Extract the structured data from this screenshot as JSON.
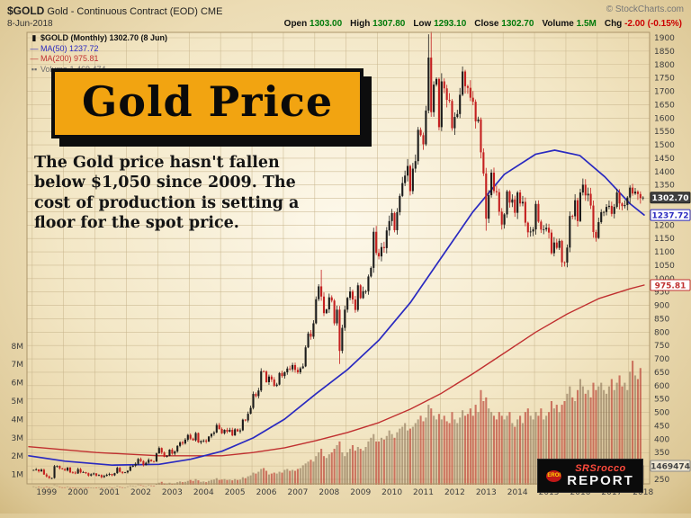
{
  "header": {
    "symbol": "$GOLD",
    "description": "Gold - Continuous Contract (EOD) CME",
    "copyright": "© StockCharts.com",
    "date": "8-Jun-2018",
    "quote": [
      {
        "label": "Open",
        "value": "1303.00"
      },
      {
        "label": "High",
        "value": "1307.80"
      },
      {
        "label": "Low",
        "value": "1293.10"
      },
      {
        "label": "Close",
        "value": "1302.70"
      },
      {
        "label": "Volume",
        "value": "1.5M"
      },
      {
        "label": "Chg",
        "value": "-2.00 (-0.15%)"
      }
    ]
  },
  "legend": {
    "main": "$GOLD (Monthly) 1302.70 (8 Jun)",
    "ma50": "MA(50) 1237.72",
    "ma200": "MA(200) 975.81",
    "volume": "Volume 1,469,474"
  },
  "banner": {
    "title": "Gold Price"
  },
  "annotation": {
    "lines": [
      "The Gold price hasn't fallen",
      "below $1,050 since 2009.  The",
      "cost of production is setting a",
      "floor for the spot price."
    ]
  },
  "logo": {
    "line1": "SRSrocco",
    "line2": "REPORT",
    "badge": "EROI"
  },
  "axis_boxes": {
    "close": "1302.70",
    "ma50": "1237.72",
    "ma200": "975.81",
    "volume": "1469474"
  },
  "colors": {
    "banner_gold": "#f2a411",
    "candle_up": "#1b1b1b",
    "candle_down": "#c41f1f",
    "ma50": "#2a2ac0",
    "ma200": "#c03030",
    "value_green": "#007a0a",
    "neg_red": "#cc0000",
    "grid": "#c8b58c"
  },
  "chart_data": {
    "type": "candlestick",
    "title": "$GOLD (Monthly) 1302.70 (8 Jun)",
    "xlabel": "Year",
    "ylabel": "Price (USD)",
    "ylim": [
      230,
      1940
    ],
    "volume_ylim_millions": [
      0,
      8
    ],
    "grid": true,
    "legend_position": "top-left",
    "x_labels": [
      1999,
      2000,
      2001,
      2002,
      2003,
      2004,
      2005,
      2006,
      2007,
      2008,
      2009,
      2010,
      2011,
      2012,
      2013,
      2014,
      2015,
      2016,
      2017,
      2018
    ],
    "y_ticks": [
      250,
      300,
      350,
      400,
      450,
      500,
      550,
      600,
      650,
      700,
      750,
      800,
      850,
      900,
      950,
      1000,
      1050,
      1100,
      1150,
      1200,
      1250,
      1300,
      1350,
      1400,
      1450,
      1500,
      1550,
      1600,
      1650,
      1700,
      1750,
      1800,
      1850,
      1900
    ],
    "volume_ticks": [
      "1M",
      "2M",
      "3M",
      "4M",
      "5M",
      "6M",
      "7M",
      "8M"
    ],
    "start_year": 1999,
    "last_close": 1302.7,
    "ma50_last": 1237.72,
    "ma200_last": 975.81,
    "last_volume": 1469474,
    "monthly_closes": [
      285,
      287,
      280,
      286,
      268,
      261,
      255,
      255,
      299,
      300,
      291,
      288,
      283,
      294,
      276,
      275,
      272,
      288,
      276,
      277,
      273,
      264,
      269,
      272,
      264,
      266,
      258,
      263,
      267,
      270,
      265,
      273,
      293,
      278,
      274,
      276,
      282,
      297,
      301,
      308,
      326,
      318,
      303,
      312,
      323,
      318,
      317,
      347,
      367,
      350,
      334,
      338,
      361,
      346,
      354,
      375,
      388,
      384,
      398,
      416,
      402,
      396,
      423,
      388,
      393,
      395,
      391,
      410,
      420,
      425,
      453,
      438,
      422,
      435,
      428,
      435,
      414,
      437,
      429,
      433,
      473,
      470,
      495,
      517,
      569,
      561,
      582,
      654,
      653,
      613,
      634,
      623,
      599,
      604,
      647,
      636,
      650,
      664,
      661,
      677,
      659,
      650,
      665,
      672,
      743,
      795,
      783,
      833,
      923,
      971,
      933,
      871,
      885,
      930,
      918,
      833,
      884,
      730,
      816,
      884,
      928,
      952,
      922,
      883,
      975,
      927,
      953,
      953,
      1008,
      1040,
      1175,
      1096,
      1083,
      1118,
      1114,
      1180,
      1215,
      1245,
      1181,
      1248,
      1309,
      1357,
      1385,
      1421,
      1327,
      1411,
      1439,
      1556,
      1536,
      1502,
      1628,
      1826,
      1622,
      1725,
      1746,
      1566,
      1737,
      1711,
      1668,
      1664,
      1562,
      1604,
      1615,
      1687,
      1774,
      1719,
      1713,
      1676,
      1661,
      1588,
      1595,
      1472,
      1393,
      1224,
      1312,
      1396,
      1327,
      1323,
      1250,
      1202,
      1240,
      1326,
      1284,
      1296,
      1246,
      1322,
      1281,
      1287,
      1209,
      1173,
      1176,
      1184,
      1279,
      1213,
      1183,
      1184,
      1190,
      1172,
      1095,
      1135,
      1115,
      1141,
      1061,
      1060,
      1116,
      1234,
      1233,
      1293,
      1215,
      1322,
      1351,
      1311,
      1317,
      1273,
      1174,
      1152,
      1211,
      1248,
      1249,
      1268,
      1272,
      1242,
      1268,
      1322,
      1281,
      1271,
      1275,
      1303,
      1340,
      1318,
      1325,
      1316,
      1301,
      1302.7
    ],
    "monthly_volumes_m": [
      0.35,
      0.3,
      0.32,
      0.3,
      0.28,
      0.33,
      0.3,
      0.29,
      0.45,
      0.4,
      0.32,
      0.3,
      0.3,
      0.34,
      0.3,
      0.28,
      0.27,
      0.3,
      0.26,
      0.27,
      0.28,
      0.3,
      0.29,
      0.27,
      0.28,
      0.3,
      0.29,
      0.27,
      0.3,
      0.32,
      0.28,
      0.3,
      0.38,
      0.32,
      0.3,
      0.28,
      0.35,
      0.4,
      0.38,
      0.36,
      0.45,
      0.42,
      0.38,
      0.36,
      0.42,
      0.4,
      0.38,
      0.48,
      0.55,
      0.6,
      0.52,
      0.48,
      0.55,
      0.5,
      0.52,
      0.58,
      0.62,
      0.58,
      0.6,
      0.65,
      0.7,
      0.65,
      0.75,
      0.68,
      0.6,
      0.62,
      0.58,
      0.65,
      0.7,
      0.72,
      0.8,
      0.7,
      0.72,
      0.75,
      0.7,
      0.72,
      0.68,
      0.75,
      0.7,
      0.72,
      0.85,
      0.8,
      0.9,
      0.95,
      1.1,
      1.05,
      1.15,
      1.3,
      1.35,
      1.2,
      1.0,
      1.05,
      1.1,
      1.05,
      1.15,
      1.1,
      1.25,
      1.3,
      1.2,
      1.25,
      1.2,
      1.3,
      1.35,
      1.5,
      1.6,
      1.7,
      1.8,
      1.7,
      2.0,
      2.2,
      2.4,
      2.0,
      1.9,
      2.1,
      2.2,
      2.4,
      2.6,
      2.8,
      2.2,
      2.0,
      2.2,
      2.4,
      2.6,
      2.3,
      2.5,
      2.4,
      2.3,
      2.5,
      2.8,
      3.0,
      3.2,
      2.8,
      2.8,
      3.0,
      2.9,
      3.1,
      3.4,
      3.2,
      3.0,
      3.3,
      3.5,
      3.6,
      3.8,
      3.4,
      3.5,
      3.6,
      3.8,
      4.0,
      4.2,
      3.9,
      4.1,
      4.8,
      4.6,
      4.2,
      4.0,
      4.3,
      4.0,
      4.2,
      3.9,
      3.8,
      4.4,
      4.0,
      3.8,
      4.1,
      4.5,
      4.2,
      4.3,
      4.6,
      4.2,
      4.8,
      4.4,
      5.6,
      5.0,
      5.2,
      4.6,
      4.4,
      4.2,
      4.0,
      4.4,
      4.2,
      4.0,
      4.2,
      4.4,
      3.8,
      3.6,
      4.0,
      4.2,
      3.8,
      4.4,
      4.6,
      4.2,
      4.0,
      4.4,
      4.2,
      4.6,
      4.0,
      4.2,
      4.4,
      5.0,
      4.6,
      4.8,
      4.4,
      4.8,
      5.0,
      5.4,
      5.8,
      5.2,
      5.0,
      5.6,
      6.2,
      5.8,
      5.4,
      5.6,
      5.2,
      6.0,
      5.6,
      5.8,
      6.0,
      5.6,
      5.4,
      5.8,
      6.2,
      5.6,
      6.0,
      6.4,
      5.8,
      6.0,
      5.6,
      6.6,
      7.2,
      6.4,
      6.2,
      6.8,
      1.5
    ],
    "high_overrides": {
      "110": 1033,
      "151": 1913,
      "152": 1923,
      "233": 1307.8
    },
    "low_overrides": {
      "6": 252,
      "117": 681,
      "173": 1179,
      "203": 1045,
      "233": 1293.1
    },
    "ma50_points": [
      [
        1998.85,
        338
      ],
      [
        2000,
        318
      ],
      [
        2001.5,
        303
      ],
      [
        2003,
        306
      ],
      [
        2004,
        325
      ],
      [
        2005,
        355
      ],
      [
        2006,
        405
      ],
      [
        2007,
        475
      ],
      [
        2008,
        570
      ],
      [
        2009,
        660
      ],
      [
        2010,
        770
      ],
      [
        2011,
        910
      ],
      [
        2012,
        1080
      ],
      [
        2013,
        1250
      ],
      [
        2014,
        1390
      ],
      [
        2015,
        1465
      ],
      [
        2015.6,
        1480
      ],
      [
        2016.4,
        1460
      ],
      [
        2017.2,
        1380
      ],
      [
        2018,
        1280
      ],
      [
        2018.45,
        1237.72
      ]
    ],
    "ma200_points": [
      [
        1998.85,
        372
      ],
      [
        2001,
        350
      ],
      [
        2003,
        338
      ],
      [
        2005,
        338
      ],
      [
        2006,
        350
      ],
      [
        2007,
        368
      ],
      [
        2008,
        395
      ],
      [
        2009,
        425
      ],
      [
        2010,
        462
      ],
      [
        2011,
        512
      ],
      [
        2012,
        572
      ],
      [
        2013,
        645
      ],
      [
        2014,
        722
      ],
      [
        2015,
        800
      ],
      [
        2016,
        868
      ],
      [
        2017,
        925
      ],
      [
        2018,
        962
      ],
      [
        2018.45,
        975.81
      ]
    ]
  }
}
